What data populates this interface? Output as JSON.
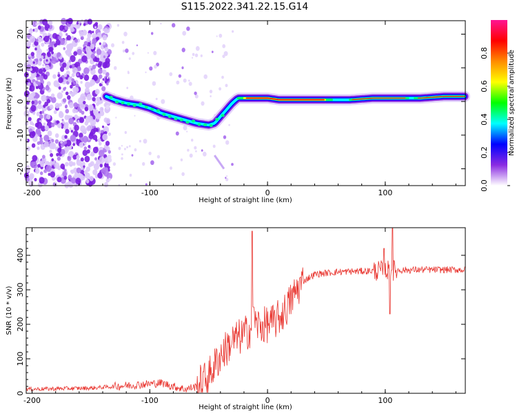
{
  "figure": {
    "title": "S115.2022.341.22.15.G14"
  },
  "chart_data": [
    {
      "type": "heatmap",
      "title": "S115.2022.341.22.15.G14",
      "xlabel": "Height of straight line (km)",
      "ylabel": "Frequency (Hz)",
      "xlim": [
        -205,
        168
      ],
      "ylim": [
        -25,
        24
      ],
      "xticks": [
        -200,
        -100,
        0,
        100
      ],
      "xtick_labels": [
        "-200",
        "-100",
        "0",
        "100"
      ],
      "yticks": [
        -20,
        -10,
        0,
        10,
        20
      ],
      "ytick_labels": [
        "-20",
        "-10",
        "0",
        "10",
        "20"
      ],
      "ridge": {
        "x": [
          -137,
          -130,
          -120,
          -110,
          -100,
          -90,
          -80,
          -70,
          -60,
          -50,
          -45,
          -40,
          -35,
          -30,
          -25,
          -20,
          -10,
          0,
          10,
          30,
          50,
          70,
          90,
          110,
          130,
          150,
          168
        ],
        "y": [
          1.5,
          0.5,
          -0.5,
          -1.0,
          -2.0,
          -3.5,
          -4.5,
          -5.5,
          -6.5,
          -7.0,
          -6.5,
          -4.5,
          -2.5,
          -0.5,
          1.0,
          1.0,
          1.0,
          1.0,
          0.5,
          0.5,
          0.5,
          0.5,
          1.0,
          1.0,
          1.0,
          1.5,
          1.5
        ]
      },
      "noise_region_x": [
        -205,
        -137
      ],
      "colorbar": {
        "label": "Normalized spectral amplitude",
        "range": [
          0.0,
          1.0
        ],
        "ticks": [
          0.0,
          0.2,
          0.4,
          0.6,
          0.8
        ],
        "tick_labels": [
          "0.0",
          "0.2",
          "0.4",
          "0.6",
          "0.8"
        ],
        "colors": [
          "#ffffff",
          "#8a2be2",
          "#0000ff",
          "#00ffff",
          "#00ff00",
          "#ffff00",
          "#ff8c00",
          "#ff0000",
          "#ff1493"
        ]
      }
    },
    {
      "type": "line",
      "xlabel": "Height of straight line (km)",
      "ylabel": "SNR (10 * v/v)",
      "xlim": [
        -205,
        168
      ],
      "ylim": [
        0,
        480
      ],
      "xticks": [
        -200,
        -100,
        0,
        100
      ],
      "xtick_labels": [
        "-200",
        "-100",
        "0",
        "100"
      ],
      "yticks": [
        0,
        100,
        200,
        300,
        400
      ],
      "ytick_labels": [
        "0",
        "100",
        "200",
        "300",
        "400"
      ],
      "series": [
        {
          "name": "SNR",
          "color": "#e8322c",
          "trend": {
            "x": [
              -205,
              -150,
              -130,
              -110,
              -90,
              -80,
              -70,
              -60,
              -50,
              -45,
              -40,
              -35,
              -30,
              -25,
              -20,
              -15,
              -10,
              -5,
              0,
              5,
              10,
              15,
              20,
              25,
              30,
              40,
              60,
              100,
              130,
              168
            ],
            "y": [
              12,
              15,
              20,
              25,
              30,
              20,
              12,
              20,
              50,
              80,
              110,
              130,
              150,
              160,
              170,
              185,
              200,
              195,
              200,
              205,
              220,
              240,
              270,
              300,
              325,
              345,
              352,
              356,
              358,
              358
            ]
          },
          "spikes": [
            {
              "x": -13,
              "y": 470
            },
            {
              "x": -12,
              "y": 250
            },
            {
              "x": 104,
              "y": 230
            },
            {
              "x": 106,
              "y": 478
            },
            {
              "x": 99,
              "y": 420
            }
          ]
        }
      ]
    }
  ]
}
